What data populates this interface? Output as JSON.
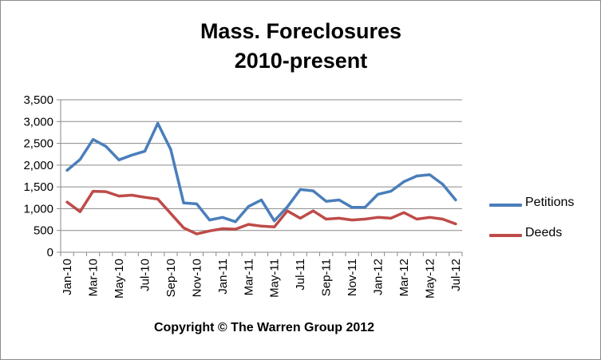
{
  "chart_data": {
    "type": "line",
    "title_lines": [
      "Mass. Foreclosures",
      "2010-present"
    ],
    "xlabel": "",
    "ylabel": "",
    "ylim": [
      0,
      3500
    ],
    "y_ticks": [
      "0",
      "500",
      "1,000",
      "1,500",
      "2,000",
      "2,500",
      "3,000",
      "3,500"
    ],
    "y_tick_values": [
      0,
      500,
      1000,
      1500,
      2000,
      2500,
      3000,
      3500
    ],
    "grid": "horizontal",
    "legend_position": "right",
    "categories": [
      "Jan-10",
      "Feb-10",
      "Mar-10",
      "Apr-10",
      "May-10",
      "Jun-10",
      "Jul-10",
      "Aug-10",
      "Sep-10",
      "Oct-10",
      "Nov-10",
      "Dec-10",
      "Jan-11",
      "Feb-11",
      "Mar-11",
      "Apr-11",
      "May-11",
      "Jun-11",
      "Jul-11",
      "Aug-11",
      "Sep-11",
      "Oct-11",
      "Nov-11",
      "Dec-11",
      "Jan-12",
      "Feb-12",
      "Mar-12",
      "Apr-12",
      "May-12",
      "Jun-12",
      "Jul-12"
    ],
    "x_tick_labels": [
      "Jan-10",
      "Mar-10",
      "May-10",
      "Jul-10",
      "Sep-10",
      "Nov-10",
      "Jan-11",
      "Mar-11",
      "May-11",
      "Jul-11",
      "Sep-11",
      "Nov-11",
      "Jan-12",
      "Mar-12",
      "May-12",
      "Jul-12"
    ],
    "series": [
      {
        "name": "Petitions",
        "color": "#4a7ebb",
        "values": [
          1880,
          2130,
          2590,
          2430,
          2120,
          2230,
          2320,
          2960,
          2360,
          1130,
          1110,
          740,
          800,
          700,
          1050,
          1200,
          720,
          1040,
          1440,
          1410,
          1170,
          1200,
          1030,
          1030,
          1330,
          1400,
          1620,
          1750,
          1780,
          1560,
          1200
        ]
      },
      {
        "name": "Deeds",
        "color": "#be4b48",
        "values": [
          1150,
          930,
          1400,
          1390,
          1290,
          1310,
          1260,
          1220,
          890,
          560,
          420,
          490,
          540,
          530,
          640,
          600,
          580,
          950,
          780,
          950,
          760,
          780,
          740,
          760,
          800,
          780,
          910,
          760,
          800,
          760,
          650
        ]
      }
    ]
  },
  "copyright": "Copyright © The Warren Group 2012"
}
